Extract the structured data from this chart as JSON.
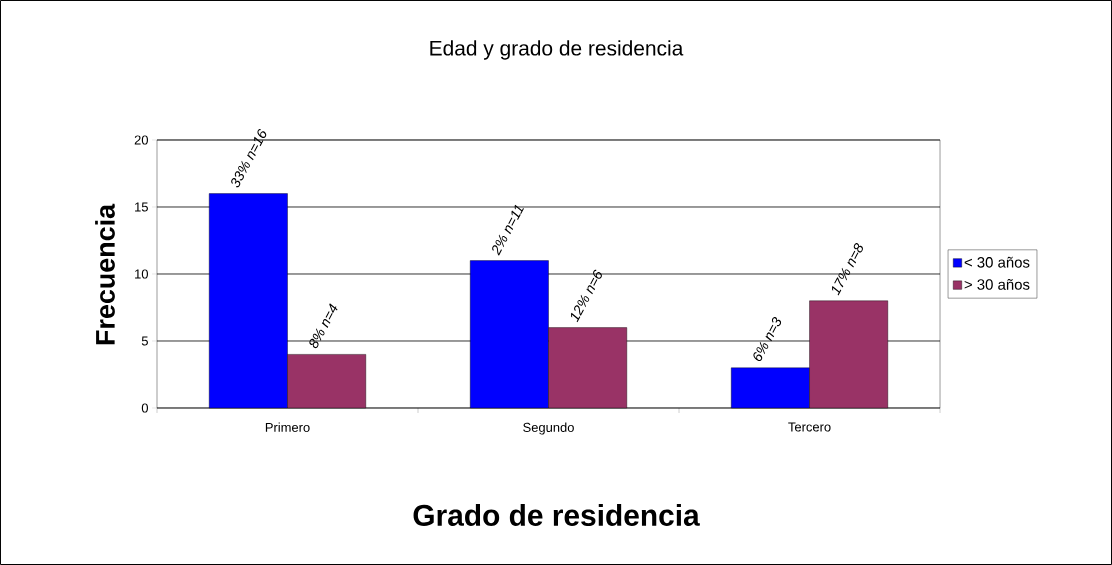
{
  "chart_data": {
    "type": "bar",
    "title": "Edad y grado de residencia",
    "xlabel": "Grado de residencia",
    "ylabel": "Frecuencia",
    "categories": [
      "Primero",
      "Segundo",
      "Tercero"
    ],
    "series": [
      {
        "name": "< 30 años",
        "color": "#0000ff",
        "values": [
          16,
          11,
          3
        ],
        "value_labels": [
          "33% n=16",
          "2% n=11",
          "6% n=3"
        ]
      },
      {
        "name": "> 30 años",
        "color": "#993366",
        "values": [
          4,
          6,
          8
        ],
        "value_labels": [
          "8% n=4",
          "12% n=6",
          "17% n=8"
        ]
      }
    ],
    "ylim": [
      0,
      20
    ],
    "yticks": [
      0,
      5,
      10,
      15,
      20
    ],
    "grid": "y",
    "legend": "right"
  }
}
